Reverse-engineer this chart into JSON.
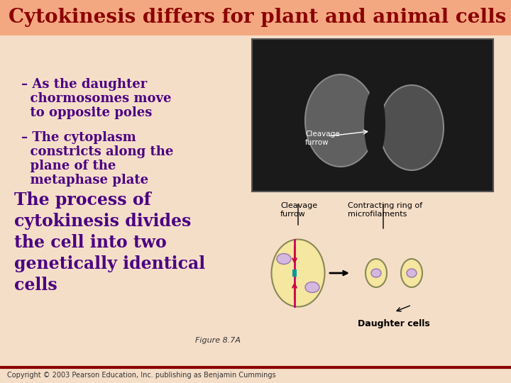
{
  "title": "Cytokinesis differs for plant and animal cells",
  "title_color": "#8B0000",
  "title_bg": "#F4A882",
  "bg_color": "#FDE8D8",
  "body_bg": "#F5DEC8",
  "bullet1_line1": "– As the daughter",
  "bullet1_line2": "  chormosomes move",
  "bullet1_line3": "  to opposite poles",
  "bullet2_line1": "– The cytoplasm",
  "bullet2_line2": "  constricts along the",
  "bullet2_line3": "  plane of the",
  "bullet2_line4": "  metaphase plate",
  "paragraph_line1": "The process of",
  "paragraph_line2": "cytokinesis divides",
  "paragraph_line3": "the cell into two",
  "paragraph_line4": "genetically identical",
  "paragraph_line5": "cells",
  "text_color": "#4B0082",
  "figure_label": "Figure 8.7A",
  "copyright": "Copyright © 2003 Pearson Education, Inc. publishing as Benjamin Cummings",
  "footer_line_color": "#8B0000",
  "cleavage_furrow_label": "Cleavage\nfurrow",
  "contracting_label": "Contracting ring of\nmicrofilaments",
  "daughter_cells_label": "Daughter cells",
  "cell_fill": "#F5E6A0",
  "nucleus_fill": "#D4B8E0",
  "arrow_color": "#C00000"
}
